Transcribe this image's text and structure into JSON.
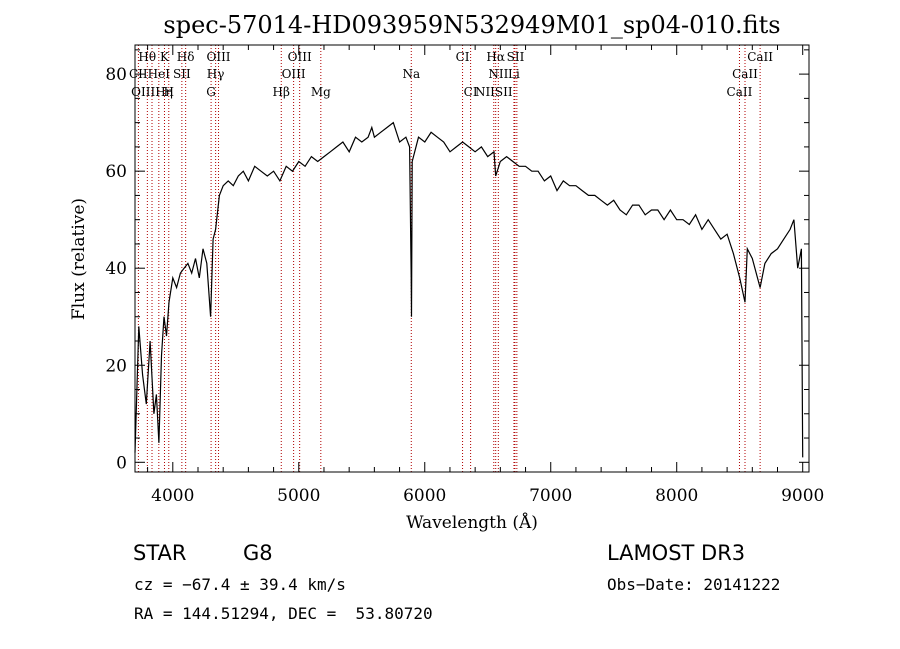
{
  "chart_data": {
    "type": "line",
    "title": "spec-57014-HD093959N532949M01_sp04-010.fits",
    "xlabel": "Wavelength (Å)",
    "ylabel": "Flux (relative)",
    "xlim": [
      3700,
      9050
    ],
    "ylim": [
      -2,
      86
    ],
    "xticks": [
      4000,
      5000,
      6000,
      7000,
      8000,
      9000
    ],
    "yticks": [
      0,
      20,
      40,
      60,
      80
    ],
    "grid": false,
    "series": [
      {
        "x": [
          3700,
          3730,
          3760,
          3790,
          3820,
          3850,
          3870,
          3890,
          3910,
          3930,
          3950,
          3970,
          4000,
          4030,
          4060,
          4090,
          4120,
          4150,
          4180,
          4210,
          4240,
          4270,
          4300,
          4320,
          4340,
          4370,
          4400,
          4440,
          4480,
          4520,
          4560,
          4600,
          4650,
          4700,
          4750,
          4800,
          4850,
          4900,
          4950,
          5000,
          5050,
          5100,
          5150,
          5200,
          5250,
          5300,
          5350,
          5400,
          5450,
          5500,
          5550,
          5580,
          5600,
          5650,
          5700,
          5750,
          5800,
          5850,
          5880,
          5892,
          5895,
          5900,
          5950,
          6000,
          6050,
          6100,
          6150,
          6200,
          6250,
          6300,
          6350,
          6400,
          6450,
          6500,
          6550,
          6563,
          6600,
          6650,
          6700,
          6750,
          6800,
          6850,
          6900,
          6950,
          7000,
          7050,
          7100,
          7150,
          7200,
          7250,
          7300,
          7350,
          7400,
          7450,
          7500,
          7550,
          7600,
          7650,
          7700,
          7750,
          7800,
          7850,
          7900,
          7950,
          8000,
          8050,
          8100,
          8150,
          8200,
          8250,
          8300,
          8350,
          8400,
          8450,
          8500,
          8542,
          8560,
          8600,
          8662,
          8700,
          8750,
          8800,
          8850,
          8900,
          8930,
          8960,
          8990,
          9000
        ],
        "y": [
          2,
          28,
          18,
          12,
          25,
          10,
          14,
          4,
          22,
          30,
          26,
          33,
          38,
          36,
          39,
          40,
          41,
          39,
          42,
          38,
          44,
          41,
          30,
          46,
          48,
          55,
          57,
          58,
          57,
          59,
          60,
          58,
          61,
          60,
          59,
          60,
          58,
          61,
          60,
          62,
          61,
          63,
          62,
          63,
          64,
          65,
          66,
          64,
          67,
          66,
          67,
          69,
          67,
          68,
          69,
          70,
          66,
          67,
          65,
          38,
          30,
          62,
          67,
          66,
          68,
          67,
          66,
          64,
          65,
          66,
          65,
          64,
          65,
          63,
          64,
          59,
          62,
          63,
          62,
          61,
          61,
          60,
          60,
          58,
          59,
          56,
          58,
          57,
          57,
          56,
          55,
          55,
          54,
          53,
          54,
          52,
          51,
          53,
          53,
          51,
          52,
          52,
          50,
          52,
          50,
          50,
          49,
          51,
          48,
          50,
          48,
          46,
          47,
          43,
          38,
          33,
          44,
          42,
          36,
          41,
          43,
          44,
          46,
          48,
          50,
          40,
          44,
          1
        ]
      }
    ],
    "line_markers": {
      "row1": [
        {
          "label": "Hθ",
          "x": 3797
        },
        {
          "label": "K",
          "x": 3934
        },
        {
          "label": "Hδ",
          "x": 4102
        },
        {
          "label": "OIII",
          "x": 4363
        },
        {
          "label": "OIII",
          "x": 5007
        },
        {
          "label": "CI",
          "x": 6300
        },
        {
          "label": "Hα",
          "x": 6563
        },
        {
          "label": "SII",
          "x": 6720
        },
        {
          "label": "CaII",
          "x": 8662
        }
      ],
      "row2": [
        {
          "label": "CII",
          "x": 3726
        },
        {
          "label": "HeI",
          "x": 3889
        },
        {
          "label": "SII",
          "x": 4072
        },
        {
          "label": "Hγ",
          "x": 4340
        },
        {
          "label": "OIII",
          "x": 4959
        },
        {
          "label": "Na",
          "x": 5893
        },
        {
          "label": "NII",
          "x": 6584
        },
        {
          "label": "Li",
          "x": 6708
        },
        {
          "label": "CaII",
          "x": 8542
        }
      ],
      "row3": [
        {
          "label": "OIIIHη",
          "x": 3835
        },
        {
          "label": "H",
          "x": 3968
        },
        {
          "label": "G",
          "x": 4304
        },
        {
          "label": "Hβ",
          "x": 4861
        },
        {
          "label": "Mg",
          "x": 5175
        },
        {
          "label": "CI",
          "x": 6364
        },
        {
          "label": "NIISII",
          "x": 6548
        },
        {
          "label": "CaII",
          "x": 8498
        }
      ],
      "line_positions": [
        3727,
        3798,
        3835,
        3889,
        3934,
        3968,
        4072,
        4102,
        4304,
        4340,
        4363,
        4861,
        4959,
        5007,
        5175,
        5893,
        6300,
        6364,
        6548,
        6563,
        6584,
        6708,
        6716,
        6731,
        8498,
        8542,
        8662
      ]
    }
  },
  "info": {
    "class_label": "STAR",
    "subclass": "G8",
    "survey": "LAMOST DR3",
    "cz": "cz = −67.4 ± 39.4 km/s",
    "obs_date": "Obs−Date: 20141222",
    "coords": "RA = 144.51294, DEC =  53.80720"
  }
}
